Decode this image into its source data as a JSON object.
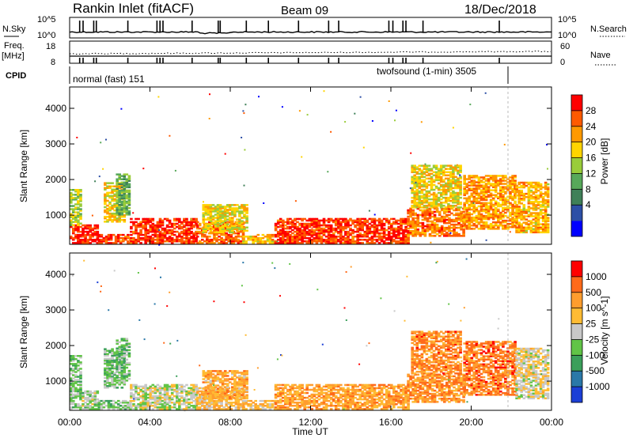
{
  "header": {
    "station": "Rankin Inlet (fitACF)",
    "beam": "Beam 09",
    "date": "18/Dec/2018"
  },
  "summary": {
    "nsky_label": "N.Sky",
    "nsky_ticks": [
      "10^5",
      "10^0"
    ],
    "nsearch_label": "N.Search",
    "nsearch_ticks": [
      "10^5",
      "10^0"
    ],
    "freq_label": "Freq.",
    "freq_units": "[MHz]",
    "freq_ticks": [
      "18",
      "8"
    ],
    "nave_label": "Nave",
    "nave_ticks": [
      "60",
      "0"
    ],
    "cpid_label": "CPID",
    "cpid_mode1": "normal (fast) 151",
    "cpid_mode2": "twofsound (1-min) 3505",
    "scan_markers_h": [
      0.5,
      0.67,
      1.2,
      1.33,
      2.9,
      4.35,
      4.5,
      4.65,
      6.1,
      7.4,
      7.5,
      8.8,
      9.9,
      11.4,
      12.9,
      13.4,
      15.9,
      16.1,
      16.6,
      16.75,
      17.6,
      21.4
    ]
  },
  "chart_data": [
    {
      "type": "heatmap",
      "name": "power",
      "ylabel": "Slant Range [km]",
      "xlabel": "",
      "yticks": [
        1000,
        2000,
        3000,
        4000
      ],
      "ylim": [
        180,
        4600
      ],
      "xlim": [
        0,
        24
      ],
      "colorbar": {
        "label": "Power [dB]",
        "ticks": [
          "28",
          "24",
          "20",
          "16",
          "12",
          "8",
          "4"
        ],
        "colors": [
          "#0000ff",
          "#2d4fa6",
          "#3f8058",
          "#57a85a",
          "#99cc3a",
          "#ffd400",
          "#ff9900",
          "#ff5a00",
          "#ff0000"
        ]
      },
      "regions": [
        {
          "t0": 0.0,
          "t1": 1.4,
          "r0": 200,
          "r1": 700,
          "level": 7.8
        },
        {
          "t0": 1.4,
          "t1": 3.0,
          "r0": 200,
          "r1": 450,
          "level": 7.2
        },
        {
          "t0": 3.0,
          "t1": 6.3,
          "r0": 200,
          "r1": 900,
          "level": 7.6
        },
        {
          "t0": 6.3,
          "t1": 8.6,
          "r0": 200,
          "r1": 800,
          "level": 6.8
        },
        {
          "t0": 8.6,
          "t1": 10.2,
          "r0": 200,
          "r1": 450,
          "level": 5.5
        },
        {
          "t0": 10.2,
          "t1": 16.8,
          "r0": 200,
          "r1": 900,
          "level": 7.5
        },
        {
          "t0": 16.8,
          "t1": 19.6,
          "r0": 400,
          "r1": 1200,
          "level": 6.6
        },
        {
          "t0": 19.6,
          "t1": 22.2,
          "r0": 600,
          "r1": 2100,
          "level": 6.0
        },
        {
          "t0": 22.2,
          "t1": 23.8,
          "r0": 500,
          "r1": 1900,
          "level": 5.6
        },
        {
          "t0": 0.0,
          "t1": 0.6,
          "r0": 700,
          "r1": 1700,
          "level": 4.4
        },
        {
          "t0": 1.7,
          "t1": 2.7,
          "r0": 800,
          "r1": 1900,
          "level": 5.2
        },
        {
          "t0": 2.3,
          "t1": 3.0,
          "r0": 1000,
          "r1": 2200,
          "level": 3.2
        },
        {
          "t0": 6.6,
          "t1": 8.8,
          "r0": 500,
          "r1": 1300,
          "level": 4.8
        },
        {
          "t0": 17.0,
          "t1": 19.5,
          "r0": 1200,
          "r1": 2400,
          "level": 5.0
        }
      ]
    },
    {
      "type": "heatmap",
      "name": "velocity",
      "ylabel": "Slant Range [km]",
      "xlabel": "Time UT",
      "xticks": [
        "00:00",
        "04:00",
        "08:00",
        "12:00",
        "16:00",
        "20:00",
        "00:00"
      ],
      "yticks": [
        1000,
        2000,
        3000,
        4000
      ],
      "ylim": [
        180,
        4600
      ],
      "xlim": [
        0,
        24
      ],
      "colorbar": {
        "label": "Velocity [m s^-1]",
        "ticks": [
          "1000",
          "500",
          "100",
          "25",
          "-25",
          "-100",
          "-500",
          "-1000"
        ],
        "colors": [
          "#1b3fd6",
          "#2a78a8",
          "#3b9f5b",
          "#61c447",
          "#c8c8c8",
          "#ffbb33",
          "#ff9d2e",
          "#ff6a1a",
          "#ff0000"
        ]
      },
      "regions": [
        {
          "t0": 0.0,
          "t1": 1.4,
          "r0": 200,
          "r1": 700,
          "level": 3.5
        },
        {
          "t0": 1.4,
          "t1": 3.0,
          "r0": 200,
          "r1": 450,
          "level": 3.2
        },
        {
          "t0": 3.0,
          "t1": 6.3,
          "r0": 200,
          "r1": 900,
          "level": 4.0
        },
        {
          "t0": 6.3,
          "t1": 8.6,
          "r0": 200,
          "r1": 800,
          "level": 5.2
        },
        {
          "t0": 8.6,
          "t1": 10.2,
          "r0": 200,
          "r1": 450,
          "level": 5.0
        },
        {
          "t0": 10.2,
          "t1": 16.8,
          "r0": 200,
          "r1": 900,
          "level": 5.8
        },
        {
          "t0": 16.8,
          "t1": 19.6,
          "r0": 400,
          "r1": 1200,
          "level": 6.2
        },
        {
          "t0": 19.6,
          "t1": 22.2,
          "r0": 600,
          "r1": 2100,
          "level": 6.6
        },
        {
          "t0": 22.2,
          "t1": 23.8,
          "r0": 500,
          "r1": 1900,
          "level": 4.4
        },
        {
          "t0": 0.0,
          "t1": 0.6,
          "r0": 700,
          "r1": 1700,
          "level": 3.0
        },
        {
          "t0": 1.7,
          "t1": 2.7,
          "r0": 800,
          "r1": 1900,
          "level": 3.0
        },
        {
          "t0": 2.3,
          "t1": 3.0,
          "r0": 1000,
          "r1": 2200,
          "level": 3.0
        },
        {
          "t0": 6.6,
          "t1": 8.8,
          "r0": 500,
          "r1": 1300,
          "level": 5.6
        },
        {
          "t0": 17.0,
          "t1": 19.5,
          "r0": 1200,
          "r1": 2400,
          "level": 6.4
        }
      ]
    }
  ]
}
